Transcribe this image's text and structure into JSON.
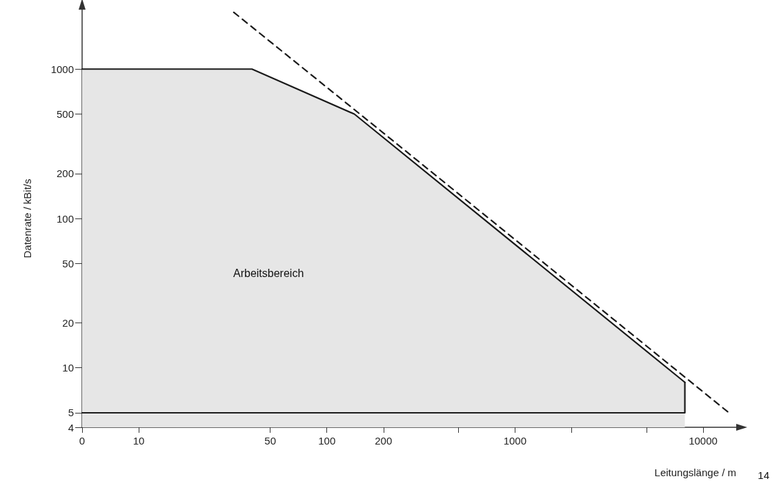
{
  "chart_data": {
    "type": "area",
    "xlabel": "Leitungslänge / m",
    "ylabel": "Datenrate / kBit/s",
    "series": [
      {
        "color": "#1a1a1a",
        "x": [
          5,
          40,
          140,
          8000
        ],
        "values": [
          1000,
          1000,
          500,
          8
        ]
      },
      {
        "type": "line",
        "color": "#1a1a1a",
        "x": [
          5,
          8000,
          8000
        ],
        "values": [
          5,
          5,
          8
        ]
      },
      {
        "type": "line",
        "color": "#1a1a1a",
        "line_style": "dashed",
        "x": [
          32,
          200,
          14000
        ],
        "values": [
          2400,
          373,
          4.9
        ]
      }
    ],
    "log": "xy",
    "xlim": [
      0,
      15000
    ],
    "xticks": [
      0,
      10,
      50,
      100,
      200,
      {
        "value": 500,
        "label": null
      },
      1000,
      {
        "value": 2000,
        "label": null
      },
      {
        "value": 5000,
        "label": null
      },
      10000
    ],
    "ylim": [
      4,
      2500
    ],
    "yticks": [
      4,
      5,
      10,
      20,
      50,
      100,
      200,
      500,
      1000
    ],
    "grid": false,
    "annotations": [
      "Arbeitsbereich",
      "14"
    ]
  }
}
